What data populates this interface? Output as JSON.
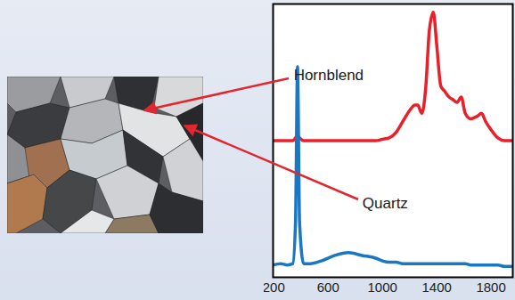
{
  "chart_data": {
    "type": "line",
    "x": [
      195,
      250,
      300,
      340,
      360,
      375,
      390,
      420,
      470,
      550,
      650,
      750,
      850,
      950,
      1000,
      1050,
      1100,
      1150,
      1200,
      1240,
      1260,
      1290,
      1320,
      1345,
      1375,
      1400,
      1430,
      1460,
      1490,
      1520,
      1550,
      1580,
      1610,
      1650,
      1700,
      1730,
      1760,
      1800,
      1850,
      1900,
      1960
    ],
    "series": [
      {
        "name": "Hornblend",
        "color": "#e8202a",
        "values": [
          50,
          50,
          50,
          50,
          51,
          52,
          51,
          50,
          50,
          50,
          50,
          50,
          50,
          50,
          50.5,
          51,
          53,
          57,
          61,
          63,
          63,
          60,
          70,
          90,
          97,
          85,
          70,
          68,
          66,
          65,
          64,
          66,
          60,
          58,
          59,
          60,
          57,
          54,
          51,
          50,
          50
        ]
      },
      {
        "name": "Quartz",
        "color": "#1a78c2",
        "values": [
          4.5,
          5,
          4.5,
          5,
          20,
          77,
          20,
          5,
          5,
          6,
          8,
          9,
          8,
          7,
          6,
          5.5,
          5.5,
          5,
          5,
          5,
          5,
          5,
          5,
          5,
          5,
          5,
          5,
          5,
          5,
          5,
          5,
          5,
          5,
          4.5,
          4.5,
          4.5,
          4.5,
          4.5,
          4.5,
          4,
          4
        ]
      }
    ],
    "xlim": [
      195,
      1960
    ],
    "xticks": [
      200,
      600,
      1000,
      1400,
      1800
    ],
    "ylim": [
      0,
      100
    ],
    "tick_labels": "x"
  }
}
